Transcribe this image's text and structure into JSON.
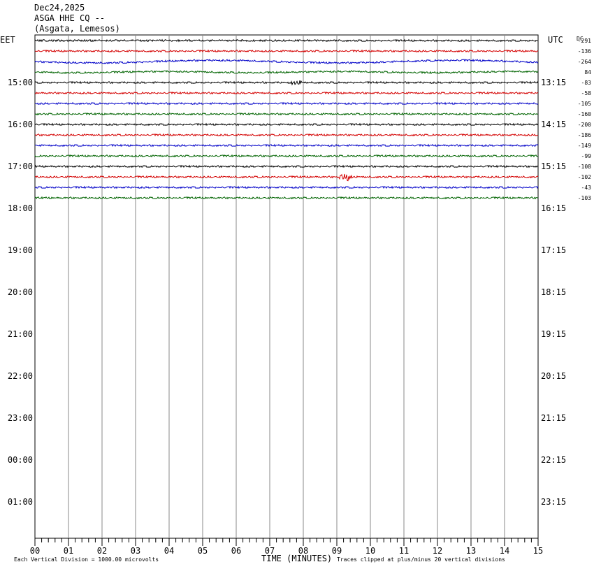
{
  "header": {
    "date": "Dec24,2025",
    "station": "ASGA HHE CQ --",
    "location": "(Asgata, Lemesos)"
  },
  "labels": {
    "left_tz": "EET",
    "right_tz": "UTC",
    "dc": "DC",
    "x_title": "TIME (MINUTES)",
    "scale_note": "Each Vertical Division = 1000.00 microvolts",
    "clip_note": "Traces clipped at plus/minus 20 vertical divisions"
  },
  "chart_data": {
    "type": "line",
    "title": "",
    "xlabel": "TIME (MINUTES)",
    "xlim": [
      0,
      15
    ],
    "x_ticks": [
      "00",
      "01",
      "02",
      "03",
      "04",
      "05",
      "06",
      "07",
      "08",
      "09",
      "10",
      "11",
      "12",
      "13",
      "14",
      "15"
    ],
    "left_hour_labels": [
      "15:00",
      "16:00",
      "17:00",
      "18:00",
      "19:00",
      "20:00",
      "21:00",
      "22:00",
      "23:00",
      "00:00",
      "01:00"
    ],
    "right_hour_labels": [
      "13:15",
      "14:15",
      "15:15",
      "16:15",
      "17:15",
      "18:15",
      "19:15",
      "20:15",
      "21:15",
      "22:15",
      "23:15"
    ],
    "trace_colors": [
      "#000000",
      "#d40000",
      "#0000c8",
      "#006400"
    ],
    "dc_offsets": [
      "-291",
      "-136",
      "-264",
      "84",
      "-83",
      "-58",
      "-105",
      "-160",
      "-200",
      "-186",
      "-149",
      "-99",
      "-108",
      "-102",
      "-43",
      "-103"
    ],
    "traces_plotted": 16,
    "event": {
      "trace_index": 13,
      "minute": 9.2,
      "label": ""
    }
  }
}
